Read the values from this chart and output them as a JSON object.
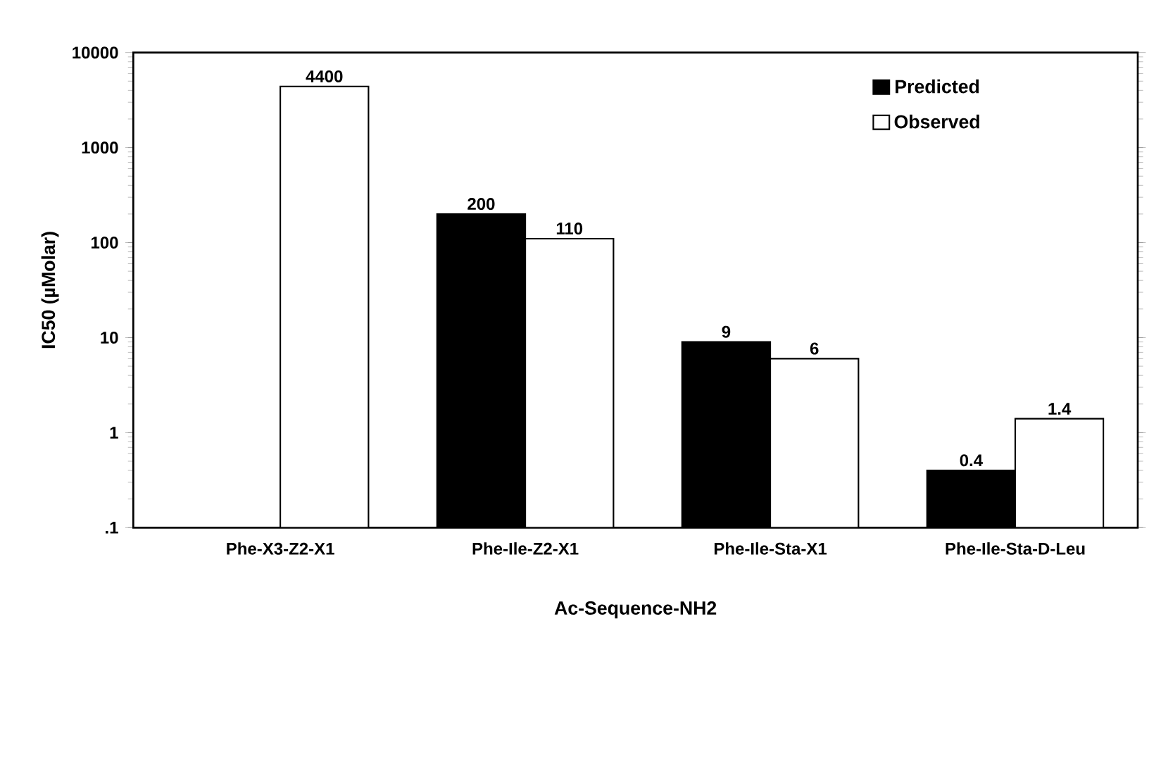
{
  "chart_data": {
    "type": "bar",
    "xlabel": "Ac-Sequence-NH2",
    "ylabel": "IC50  (µMolar)",
    "categories": [
      "Phe-X3-Z2-X1",
      "Phe-Ile-Z2-X1",
      "Phe-Ile-Sta-X1",
      "Phe-Ile-Sta-D-Leu"
    ],
    "series": [
      {
        "name": "Predicted",
        "color": "#000000",
        "values": [
          null,
          200,
          9,
          0.4
        ],
        "value_labels": [
          null,
          "200",
          "9",
          "0.4"
        ]
      },
      {
        "name": "Observed",
        "color": "#000000",
        "values": [
          4400,
          110,
          6,
          1.4
        ],
        "value_labels": [
          "4400",
          "110",
          "6",
          "1.4"
        ]
      }
    ],
    "log": "y",
    "ylim": [
      0.1,
      10000
    ],
    "yticks": [
      {
        "value": 0.1,
        "label": ".1"
      },
      1,
      10,
      100,
      1000,
      10000
    ],
    "legend": "top right",
    "grid": false
  }
}
